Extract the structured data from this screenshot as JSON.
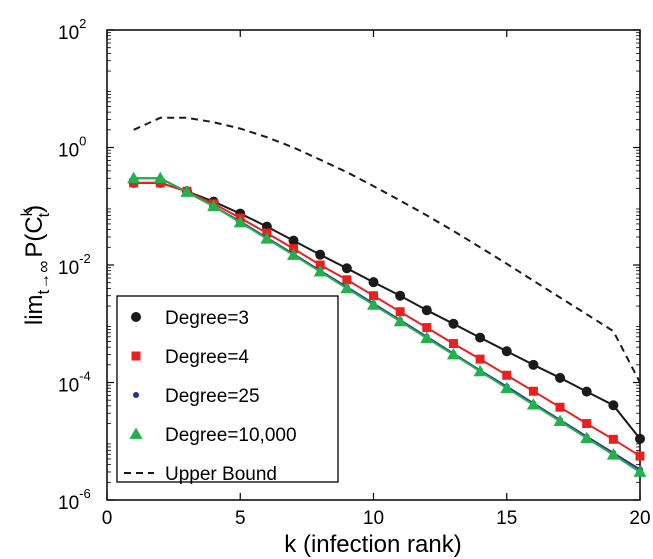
{
  "chart_data": {
    "type": "line",
    "title": "",
    "xlabel": "k (infection rank)",
    "ylabel": {
      "main": "lim",
      "sub": "t→∞",
      "p": "P(C",
      "sup": "k",
      "sub2": "t",
      "close": ")"
    },
    "xlim": [
      0,
      20
    ],
    "ylim": [
      1e-06,
      100
    ],
    "yscale": "log",
    "grid": false,
    "legend_position": "bottom-left",
    "x_ticks": [
      "0",
      "5",
      "10",
      "15",
      "20"
    ],
    "y_ticks": [
      {
        "base": "10",
        "exp": "2"
      },
      {
        "base": "10",
        "exp": "0"
      },
      {
        "base": "10",
        "exp": "-2"
      },
      {
        "base": "10",
        "exp": "-4"
      },
      {
        "base": "10",
        "exp": "-6"
      }
    ],
    "x": [
      1,
      2,
      3,
      4,
      5,
      6,
      7,
      8,
      9,
      10,
      11,
      12,
      13,
      14,
      15,
      16,
      17,
      18,
      19,
      20
    ],
    "series": [
      {
        "name": "Degree=3",
        "color": "#1a1a1a",
        "marker": "circle",
        "line": "solid",
        "values": [
          0.25,
          0.25,
          0.18,
          0.12,
          0.075,
          0.045,
          0.026,
          0.015,
          0.0088,
          0.0051,
          0.003,
          0.0017,
          0.001,
          0.00058,
          0.00034,
          0.0002,
          0.00012,
          7e-05,
          4.1e-05,
          1.1e-05
        ]
      },
      {
        "name": "Degree=4",
        "color": "#e8201f",
        "marker": "square",
        "line": "solid",
        "values": [
          0.25,
          0.25,
          0.18,
          0.11,
          0.063,
          0.035,
          0.019,
          0.01,
          0.0056,
          0.003,
          0.0016,
          0.00086,
          0.00046,
          0.00025,
          0.000133,
          7.1e-05,
          3.8e-05,
          2e-05,
          1.08e-05,
          5.6e-06
        ]
      },
      {
        "name": "Degree=25",
        "color": "#2b2f8f",
        "marker": "dot",
        "line": "solid",
        "values": [
          0.3,
          0.3,
          0.175,
          0.1,
          0.055,
          0.029,
          0.0153,
          0.008,
          0.0042,
          0.0022,
          0.00115,
          0.0006,
          0.00031,
          0.00016,
          8.5e-05,
          4.4e-05,
          2.3e-05,
          1.2e-05,
          6.3e-06,
          3.3e-06
        ]
      },
      {
        "name": "Degree=10,000",
        "color": "#22b14c",
        "marker": "triangle",
        "line": "solid",
        "values": [
          0.3,
          0.3,
          0.175,
          0.1,
          0.053,
          0.028,
          0.0148,
          0.0077,
          0.004,
          0.0021,
          0.0011,
          0.00057,
          0.0003,
          0.000155,
          8e-05,
          4.2e-05,
          2.2e-05,
          1.13e-05,
          5.9e-06,
          3e-06
        ]
      },
      {
        "name": "Upper Bound",
        "color": "#1a1a1a",
        "marker": "none",
        "line": "dashed",
        "x": [
          1,
          2,
          3,
          4,
          5,
          6,
          7,
          8,
          9,
          10,
          11,
          12,
          13,
          14,
          15,
          16,
          17,
          18,
          19,
          20
        ],
        "values": [
          2.0,
          3.2,
          3.2,
          2.7,
          2.1,
          1.5,
          1.0,
          0.62,
          0.38,
          0.22,
          0.125,
          0.07,
          0.038,
          0.02,
          0.0105,
          0.0054,
          0.0028,
          0.00145,
          0.00075,
          0.0001
        ]
      }
    ]
  }
}
